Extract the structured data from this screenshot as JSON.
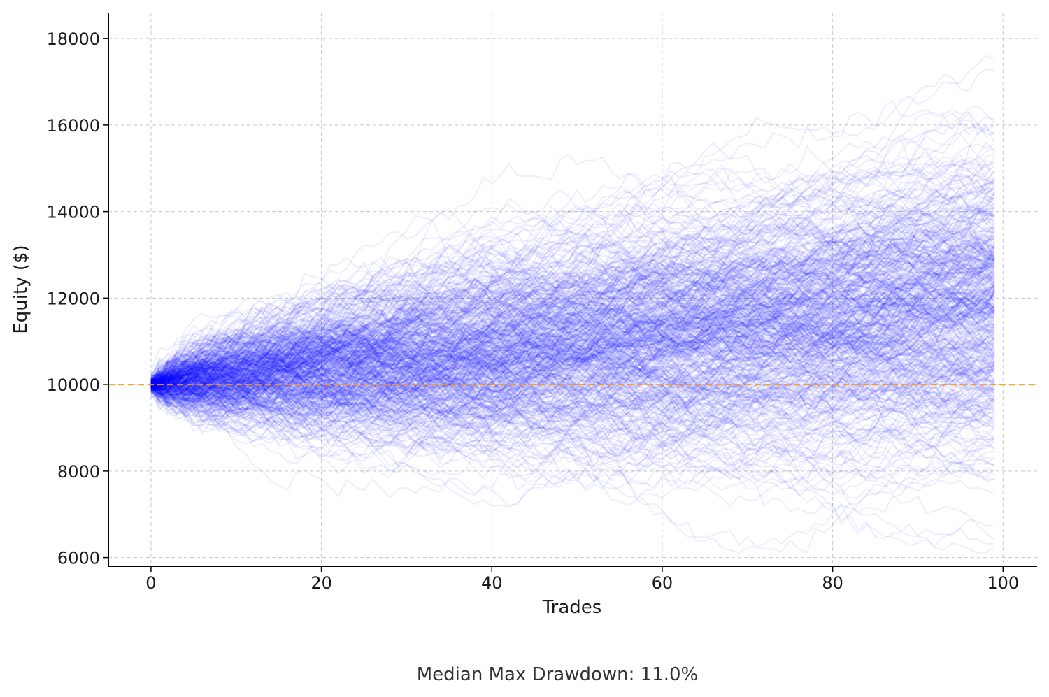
{
  "chart_data": {
    "type": "line",
    "title": "",
    "xlabel": "Trades",
    "ylabel": "Equity ($)",
    "xlim": [
      -5,
      104
    ],
    "ylim": [
      5800,
      18600
    ],
    "x_ticks": [
      0,
      20,
      40,
      60,
      80,
      100
    ],
    "y_ticks": [
      6000,
      8000,
      10000,
      12000,
      14000,
      16000,
      18000
    ],
    "grid": true,
    "legend": "none",
    "simulation": {
      "path_count": 500,
      "trades": 100,
      "start_equity": 10000,
      "path_color": "#0000ff",
      "path_opacity": 0.07,
      "envelope_at_trade_99": {
        "max": 17800,
        "upper": 15800,
        "lower": 7700,
        "min": 6900
      }
    },
    "reference_line": {
      "value": 10000,
      "color": "#ff9900",
      "style": "dashed"
    },
    "caption": "Median Max Drawdown: 11.0%"
  }
}
